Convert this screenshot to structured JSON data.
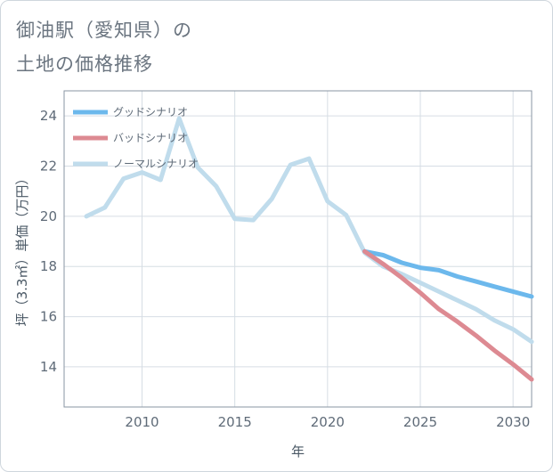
{
  "title": {
    "line1": "御油駅（愛知県）の",
    "line2": "土地の価格推移"
  },
  "chart_data": {
    "type": "line",
    "xlabel": "年",
    "ylabel": "坪（3.3㎡）単価（万円）",
    "xlim": [
      2005.8,
      2031
    ],
    "ylim": [
      12.4,
      25
    ],
    "xticks": [
      2010,
      2015,
      2020,
      2025,
      2030
    ],
    "yticks": [
      14,
      16,
      18,
      20,
      22,
      24
    ],
    "grid": true,
    "legend_position": "top-left",
    "series": [
      {
        "name": "グッドシナリオ",
        "color": "#6cb8ec",
        "x": [
          2022,
          2023,
          2024,
          2025,
          2026,
          2027,
          2028,
          2029,
          2030,
          2031
        ],
        "values": [
          18.6,
          18.45,
          18.15,
          17.95,
          17.85,
          17.6,
          17.4,
          17.2,
          17.0,
          16.8
        ]
      },
      {
        "name": "バッドシナリオ",
        "color": "#dd8a92",
        "x": [
          2022,
          2023,
          2024,
          2025,
          2026,
          2027,
          2028,
          2029,
          2030,
          2031
        ],
        "values": [
          18.6,
          18.1,
          17.55,
          16.95,
          16.3,
          15.8,
          15.25,
          14.65,
          14.1,
          13.5
        ]
      },
      {
        "name": "ノーマルシナリオ",
        "color": "#c0dcec",
        "x": [
          2007,
          2008,
          2009,
          2010,
          2011,
          2012,
          2013,
          2014,
          2015,
          2016,
          2017,
          2018,
          2019,
          2020,
          2021,
          2022,
          2023,
          2024,
          2025,
          2026,
          2027,
          2028,
          2029,
          2030,
          2031
        ],
        "values": [
          20.0,
          20.35,
          21.5,
          21.75,
          21.45,
          23.9,
          21.95,
          21.2,
          19.9,
          19.85,
          20.7,
          22.05,
          22.3,
          20.6,
          20.05,
          18.55,
          18.0,
          17.7,
          17.35,
          17.0,
          16.65,
          16.3,
          15.85,
          15.5,
          15.0
        ]
      }
    ]
  }
}
